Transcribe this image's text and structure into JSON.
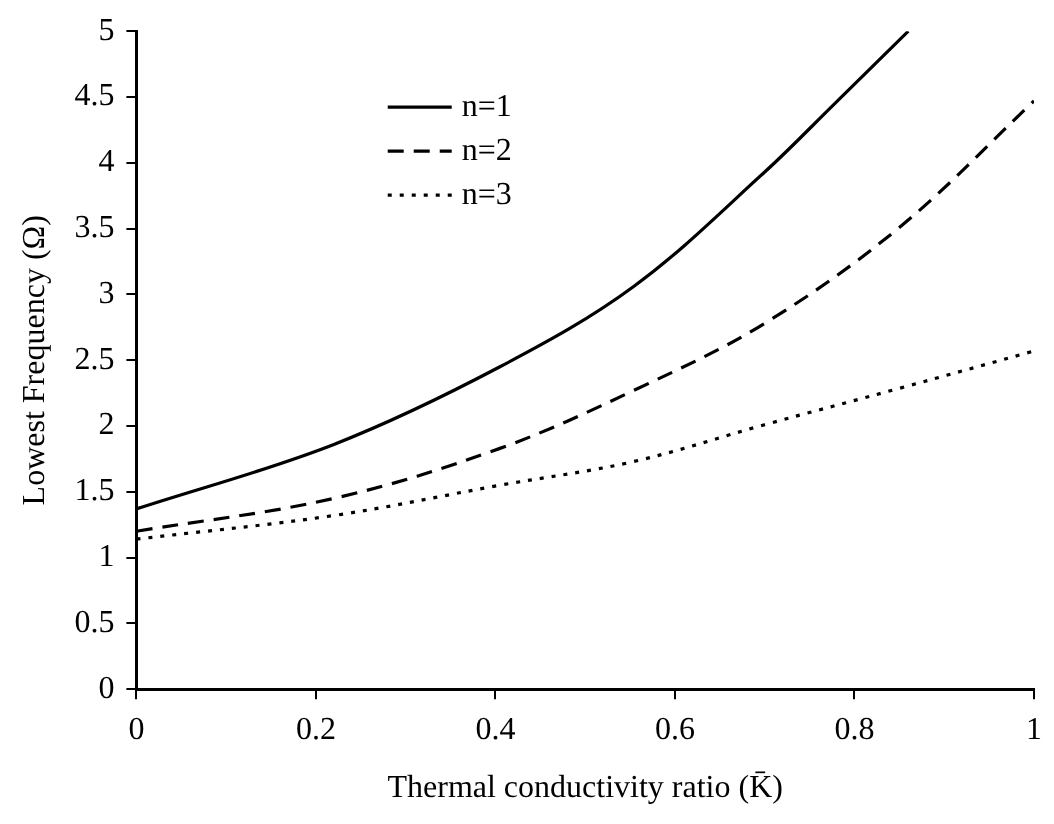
{
  "chart_data": {
    "type": "line",
    "xlabel": "Thermal conductivity ratio (K̄)",
    "ylabel": "Lowest Frequency (Ω)",
    "xlim": [
      0,
      1
    ],
    "xticks": [
      0,
      0.2,
      0.4,
      0.6,
      0.8,
      1
    ],
    "ylim": [
      0,
      5
    ],
    "yticks": [
      0,
      0.5,
      1,
      1.5,
      2,
      2.5,
      3,
      3.5,
      4,
      4.5,
      5
    ],
    "grid": false,
    "legend": "top",
    "marker": "none",
    "series": [
      {
        "name": "n=1",
        "color": "#000000",
        "line_style": "solid",
        "x": [
          0,
          0.22,
          0.405,
          0.554,
          0.7,
          0.778,
          0.86
        ],
        "values": [
          1.37,
          1.86,
          2.45,
          3.06,
          3.93,
          4.45,
          5.0
        ]
      },
      {
        "name": "n=2",
        "color": "#000000",
        "line_style": "dashed",
        "x": [
          0,
          0.22,
          0.405,
          0.554,
          0.7,
          0.852,
          1.0
        ],
        "values": [
          1.2,
          1.45,
          1.83,
          2.27,
          2.78,
          3.52,
          4.47
        ]
      },
      {
        "name": "n=3",
        "color": "#000000",
        "line_style": "dotted",
        "x": [
          0,
          0.22,
          0.405,
          0.554,
          0.7,
          0.852,
          1.0
        ],
        "values": [
          1.14,
          1.32,
          1.55,
          1.73,
          2.01,
          2.29,
          2.57
        ]
      }
    ]
  }
}
